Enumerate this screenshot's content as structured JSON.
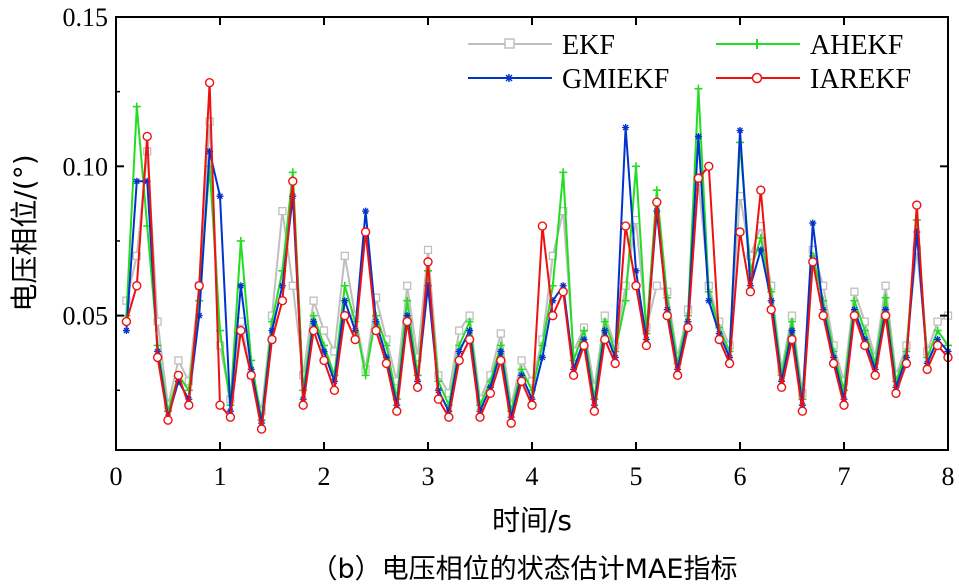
{
  "chart_data": {
    "type": "line",
    "title": "",
    "caption": "（b）电压相位的状态估计MAE指标",
    "xlabel": "时间/s",
    "ylabel": "电压相位/(°)",
    "xlim": [
      0,
      8
    ],
    "ylim": [
      0.005,
      0.15
    ],
    "x_ticks": [
      0,
      1,
      2,
      3,
      4,
      5,
      6,
      7,
      8
    ],
    "x_tick_labels": [
      "0",
      "1",
      "2",
      "3",
      "4",
      "5",
      "6",
      "7",
      "8"
    ],
    "y_ticks": [
      0.05,
      0.1,
      0.15
    ],
    "y_tick_labels": [
      "0.05",
      "0.10",
      "0.15"
    ],
    "legend": {
      "placement": "top-right",
      "columns": 2
    },
    "series": [
      {
        "name": "EKF",
        "color": "#bfbfbf",
        "marker": "square",
        "x": [
          0.1,
          0.2,
          0.3,
          0.4,
          0.5,
          0.6,
          0.7,
          0.8,
          0.9,
          1.0,
          1.1,
          1.2,
          1.3,
          1.4,
          1.5,
          1.6,
          1.7,
          1.8,
          1.9,
          2.0,
          2.1,
          2.2,
          2.3,
          2.4,
          2.5,
          2.6,
          2.7,
          2.8,
          2.9,
          3.0,
          3.1,
          3.2,
          3.3,
          3.4,
          3.5,
          3.6,
          3.7,
          3.8,
          3.9,
          4.0,
          4.1,
          4.2,
          4.3,
          4.4,
          4.5,
          4.6,
          4.7,
          4.8,
          4.9,
          5.0,
          5.1,
          5.2,
          5.3,
          5.4,
          5.5,
          5.6,
          5.7,
          5.8,
          5.9,
          6.0,
          6.1,
          6.2,
          6.3,
          6.4,
          6.5,
          6.6,
          6.7,
          6.8,
          6.9,
          7.0,
          7.1,
          7.2,
          7.3,
          7.4,
          7.5,
          7.6,
          7.7,
          7.8,
          7.9,
          8.0
        ],
        "y": [
          0.055,
          0.07,
          0.105,
          0.048,
          0.02,
          0.035,
          0.028,
          0.06,
          0.115,
          0.04,
          0.022,
          0.048,
          0.03,
          0.018,
          0.05,
          0.085,
          0.06,
          0.03,
          0.055,
          0.045,
          0.038,
          0.07,
          0.05,
          0.032,
          0.056,
          0.042,
          0.028,
          0.06,
          0.036,
          0.072,
          0.03,
          0.024,
          0.045,
          0.05,
          0.022,
          0.03,
          0.044,
          0.02,
          0.035,
          0.028,
          0.042,
          0.07,
          0.085,
          0.038,
          0.046,
          0.026,
          0.05,
          0.04,
          0.06,
          0.082,
          0.046,
          0.06,
          0.058,
          0.036,
          0.052,
          0.095,
          0.06,
          0.048,
          0.04,
          0.09,
          0.07,
          0.08,
          0.06,
          0.032,
          0.05,
          0.024,
          0.072,
          0.06,
          0.04,
          0.028,
          0.058,
          0.048,
          0.036,
          0.06,
          0.03,
          0.04,
          0.072,
          0.038,
          0.048,
          0.05
        ]
      },
      {
        "name": "AHEKF",
        "color": "#22dd22",
        "marker": "plus",
        "x": [
          0.1,
          0.2,
          0.3,
          0.4,
          0.5,
          0.6,
          0.7,
          0.8,
          0.9,
          1.0,
          1.1,
          1.2,
          1.3,
          1.4,
          1.5,
          1.6,
          1.7,
          1.8,
          1.9,
          2.0,
          2.1,
          2.2,
          2.3,
          2.4,
          2.5,
          2.6,
          2.7,
          2.8,
          2.9,
          3.0,
          3.1,
          3.2,
          3.3,
          3.4,
          3.5,
          3.6,
          3.7,
          3.8,
          3.9,
          4.0,
          4.1,
          4.2,
          4.3,
          4.4,
          4.5,
          4.6,
          4.7,
          4.8,
          4.9,
          5.0,
          5.1,
          5.2,
          5.3,
          5.4,
          5.5,
          5.6,
          5.7,
          5.8,
          5.9,
          6.0,
          6.1,
          6.2,
          6.3,
          6.4,
          6.5,
          6.6,
          6.7,
          6.8,
          6.9,
          7.0,
          7.1,
          7.2,
          7.3,
          7.4,
          7.5,
          7.6,
          7.7,
          7.8,
          7.9,
          8.0
        ],
        "y": [
          0.05,
          0.12,
          0.08,
          0.04,
          0.018,
          0.03,
          0.025,
          0.055,
          0.1,
          0.045,
          0.02,
          0.075,
          0.035,
          0.015,
          0.048,
          0.065,
          0.098,
          0.025,
          0.05,
          0.04,
          0.03,
          0.06,
          0.048,
          0.03,
          0.05,
          0.04,
          0.022,
          0.055,
          0.03,
          0.065,
          0.028,
          0.02,
          0.04,
          0.048,
          0.02,
          0.028,
          0.04,
          0.018,
          0.032,
          0.025,
          0.04,
          0.06,
          0.098,
          0.035,
          0.045,
          0.022,
          0.048,
          0.038,
          0.055,
          0.1,
          0.044,
          0.092,
          0.056,
          0.034,
          0.05,
          0.126,
          0.058,
          0.046,
          0.038,
          0.108,
          0.065,
          0.076,
          0.058,
          0.03,
          0.048,
          0.022,
          0.07,
          0.055,
          0.038,
          0.025,
          0.055,
          0.045,
          0.034,
          0.056,
          0.028,
          0.038,
          0.082,
          0.036,
          0.045,
          0.04
        ]
      },
      {
        "name": "GMIEKF",
        "color": "#0033cc",
        "marker": "asterisk",
        "x": [
          0.1,
          0.2,
          0.3,
          0.4,
          0.5,
          0.6,
          0.7,
          0.8,
          0.9,
          1.0,
          1.1,
          1.2,
          1.3,
          1.4,
          1.5,
          1.6,
          1.7,
          1.8,
          1.9,
          2.0,
          2.1,
          2.2,
          2.3,
          2.4,
          2.5,
          2.6,
          2.7,
          2.8,
          2.9,
          3.0,
          3.1,
          3.2,
          3.3,
          3.4,
          3.5,
          3.6,
          3.7,
          3.8,
          3.9,
          4.0,
          4.1,
          4.2,
          4.3,
          4.4,
          4.5,
          4.6,
          4.7,
          4.8,
          4.9,
          5.0,
          5.1,
          5.2,
          5.3,
          5.4,
          5.5,
          5.6,
          5.7,
          5.8,
          5.9,
          6.0,
          6.1,
          6.2,
          6.3,
          6.4,
          6.5,
          6.6,
          6.7,
          6.8,
          6.9,
          7.0,
          7.1,
          7.2,
          7.3,
          7.4,
          7.5,
          7.6,
          7.7,
          7.8,
          7.9,
          8.0
        ],
        "y": [
          0.045,
          0.095,
          0.095,
          0.038,
          0.016,
          0.028,
          0.022,
          0.05,
          0.105,
          0.09,
          0.018,
          0.06,
          0.032,
          0.014,
          0.045,
          0.06,
          0.09,
          0.022,
          0.048,
          0.038,
          0.028,
          0.055,
          0.045,
          0.085,
          0.048,
          0.036,
          0.02,
          0.05,
          0.028,
          0.06,
          0.025,
          0.018,
          0.038,
          0.045,
          0.018,
          0.026,
          0.038,
          0.016,
          0.03,
          0.022,
          0.036,
          0.055,
          0.06,
          0.032,
          0.042,
          0.02,
          0.045,
          0.036,
          0.113,
          0.065,
          0.042,
          0.085,
          0.052,
          0.032,
          0.048,
          0.11,
          0.055,
          0.044,
          0.036,
          0.112,
          0.06,
          0.072,
          0.055,
          0.028,
          0.045,
          0.02,
          0.081,
          0.052,
          0.036,
          0.022,
          0.052,
          0.042,
          0.032,
          0.052,
          0.026,
          0.036,
          0.078,
          0.034,
          0.042,
          0.038
        ]
      },
      {
        "name": "IAREKF",
        "color": "#ee1111",
        "marker": "circle",
        "x": [
          0.1,
          0.2,
          0.3,
          0.4,
          0.5,
          0.6,
          0.7,
          0.8,
          0.9,
          1.0,
          1.1,
          1.2,
          1.3,
          1.4,
          1.5,
          1.6,
          1.7,
          1.8,
          1.9,
          2.0,
          2.1,
          2.2,
          2.3,
          2.4,
          2.5,
          2.6,
          2.7,
          2.8,
          2.9,
          3.0,
          3.1,
          3.2,
          3.3,
          3.4,
          3.5,
          3.6,
          3.7,
          3.8,
          3.9,
          4.0,
          4.1,
          4.2,
          4.3,
          4.4,
          4.5,
          4.6,
          4.7,
          4.8,
          4.9,
          5.0,
          5.1,
          5.2,
          5.3,
          5.4,
          5.5,
          5.6,
          5.7,
          5.8,
          5.9,
          6.0,
          6.1,
          6.2,
          6.3,
          6.4,
          6.5,
          6.6,
          6.7,
          6.8,
          6.9,
          7.0,
          7.1,
          7.2,
          7.3,
          7.4,
          7.5,
          7.6,
          7.7,
          7.8,
          7.9,
          8.0
        ],
        "y": [
          0.048,
          0.06,
          0.11,
          0.036,
          0.015,
          0.03,
          0.02,
          0.06,
          0.128,
          0.02,
          0.016,
          0.045,
          0.03,
          0.012,
          0.042,
          0.055,
          0.095,
          0.02,
          0.045,
          0.035,
          0.025,
          0.05,
          0.042,
          0.078,
          0.045,
          0.034,
          0.018,
          0.048,
          0.026,
          0.068,
          0.022,
          0.016,
          0.035,
          0.042,
          0.016,
          0.024,
          0.035,
          0.014,
          0.028,
          0.02,
          0.08,
          0.05,
          0.058,
          0.03,
          0.04,
          0.018,
          0.042,
          0.034,
          0.08,
          0.06,
          0.04,
          0.088,
          0.05,
          0.03,
          0.046,
          0.096,
          0.1,
          0.042,
          0.034,
          0.078,
          0.058,
          0.092,
          0.052,
          0.026,
          0.042,
          0.018,
          0.068,
          0.05,
          0.034,
          0.02,
          0.05,
          0.04,
          0.03,
          0.05,
          0.024,
          0.034,
          0.087,
          0.032,
          0.04,
          0.036
        ]
      }
    ]
  }
}
